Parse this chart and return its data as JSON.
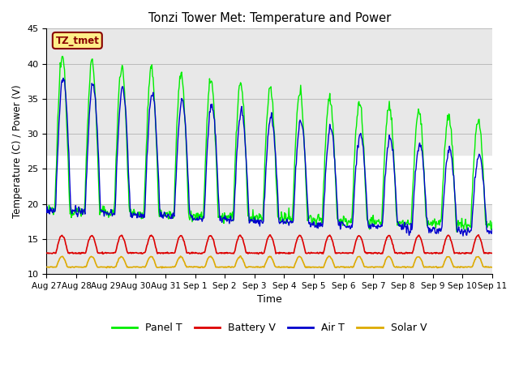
{
  "title": "Tonzi Tower Met: Temperature and Power",
  "xlabel": "Time",
  "ylabel": "Temperature (C) / Power (V)",
  "ylim": [
    10,
    45
  ],
  "yticks": [
    10,
    15,
    20,
    25,
    30,
    35,
    40,
    45
  ],
  "x_labels": [
    "Aug 27",
    "Aug 28",
    "Aug 29",
    "Aug 30",
    "Aug 31",
    "Sep 1",
    "Sep 2",
    "Sep 3",
    "Sep 4",
    "Sep 5",
    "Sep 6",
    "Sep 7",
    "Sep 8",
    "Sep 9",
    "Sep 10",
    "Sep 11"
  ],
  "annotation_text": "TZ_tmet",
  "annotation_box_color": "#ffee88",
  "annotation_text_color": "#880000",
  "legend_entries": [
    "Panel T",
    "Battery V",
    "Air T",
    "Solar V"
  ],
  "legend_colors": [
    "#00ee00",
    "#dd0000",
    "#0000cc",
    "#ddaa00"
  ],
  "panel_t_color": "#00ee00",
  "battery_v_color": "#dd0000",
  "air_t_color": "#0000cc",
  "solar_v_color": "#ddaa00",
  "bg_gray": "#e8e8e8",
  "bg_white": "#ffffff",
  "gray_band1": [
    27,
    45
  ],
  "gray_band2": [
    10,
    20
  ]
}
